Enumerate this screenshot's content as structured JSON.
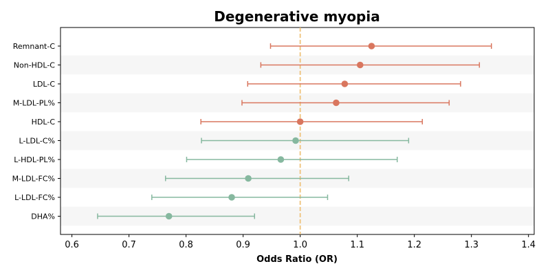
{
  "chart_data": {
    "type": "forest",
    "title": "Degenerative myopia",
    "xlabel": "Odds Ratio (OR)",
    "ylabel": "",
    "xlim": [
      0.58,
      1.41
    ],
    "xticks": [
      "0.6",
      "0.7",
      "0.8",
      "0.9",
      "1.0",
      "1.1",
      "1.2",
      "1.3",
      "1.4"
    ],
    "reference_line": 1.0,
    "colors": {
      "positive": "#d9765e",
      "negative": "#86b89f",
      "reference": "#efc27a",
      "stripe": "#f6f6f6"
    },
    "rows": [
      {
        "label": "Remnant-C",
        "or": 1.125,
        "lower": 0.948,
        "upper": 1.335,
        "group": "positive"
      },
      {
        "label": "Non-HDL-C",
        "or": 1.105,
        "lower": 0.931,
        "upper": 1.314,
        "group": "positive"
      },
      {
        "label": "LDL-C",
        "or": 1.078,
        "lower": 0.908,
        "upper": 1.281,
        "group": "positive"
      },
      {
        "label": "M-LDL-PL%",
        "or": 1.063,
        "lower": 0.898,
        "upper": 1.261,
        "group": "positive"
      },
      {
        "label": "HDL-C",
        "or": 1.0,
        "lower": 0.826,
        "upper": 1.214,
        "group": "positive"
      },
      {
        "label": "L-LDL-C%",
        "or": 0.992,
        "lower": 0.827,
        "upper": 1.19,
        "group": "negative"
      },
      {
        "label": "L-HDL-PL%",
        "or": 0.966,
        "lower": 0.801,
        "upper": 1.17,
        "group": "negative"
      },
      {
        "label": "M-LDL-FC%",
        "or": 0.909,
        "lower": 0.764,
        "upper": 1.085,
        "group": "negative"
      },
      {
        "label": "L-LDL-FC%",
        "or": 0.88,
        "lower": 0.74,
        "upper": 1.048,
        "group": "negative"
      },
      {
        "label": "DHA%",
        "or": 0.77,
        "lower": 0.645,
        "upper": 0.92,
        "group": "negative"
      }
    ]
  }
}
